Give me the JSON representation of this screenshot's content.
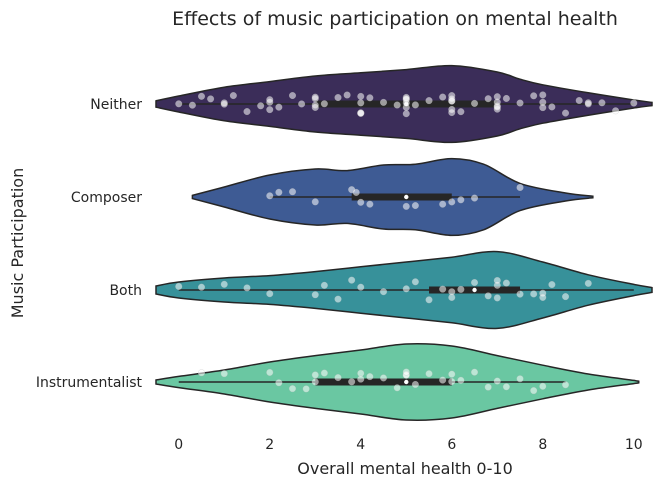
{
  "chart_data": {
    "type": "violin",
    "orientation": "horizontal",
    "title": "Effects of music participation on mental health",
    "xlabel": "Overall mental health 0-10",
    "ylabel": "Music Participation",
    "xlim": [
      -0.5,
      10.4
    ],
    "xticks": [
      "0",
      "2",
      "4",
      "6",
      "8",
      "10"
    ],
    "grid": false,
    "categories": [
      "Neither",
      "Composer",
      "Both",
      "Instrumentalist"
    ],
    "colors": [
      "#3b2d59",
      "#3e5b94",
      "#37919a",
      "#6ac7a2"
    ],
    "series": [
      {
        "name": "Neither",
        "density": [
          [
            -0.5,
            0.08
          ],
          [
            0,
            0.2
          ],
          [
            1,
            0.42
          ],
          [
            2,
            0.56
          ],
          [
            3,
            0.7
          ],
          [
            4,
            0.78
          ],
          [
            5,
            0.86
          ],
          [
            6,
            0.96
          ],
          [
            7,
            0.8
          ],
          [
            7.5,
            0.62
          ],
          [
            8,
            0.48
          ],
          [
            9,
            0.28
          ],
          [
            10,
            0.1
          ],
          [
            10.4,
            0.04
          ]
        ],
        "quartiles": [
          3,
          5,
          7
        ],
        "whiskers": [
          0,
          10
        ],
        "points": [
          0,
          0.3,
          0.5,
          0.7,
          1,
          1,
          1.2,
          1.5,
          1.8,
          2,
          2,
          2,
          2.2,
          2.5,
          2.7,
          3,
          3,
          3,
          3,
          3.2,
          3.5,
          3.7,
          4,
          4,
          4,
          4,
          4,
          4.2,
          4.5,
          4.8,
          5,
          5,
          5,
          5,
          5,
          5,
          5.2,
          5.5,
          5.8,
          6,
          6,
          6,
          6,
          6,
          6,
          6.2,
          6.5,
          6.8,
          7,
          7,
          7,
          7,
          7,
          7.2,
          7.5,
          7.8,
          8,
          8,
          8,
          8.2,
          8.5,
          8.8,
          9,
          9,
          9.3,
          9.6,
          10
        ]
      },
      {
        "name": "Composer",
        "density": [
          [
            0.3,
            0.04
          ],
          [
            1,
            0.25
          ],
          [
            2,
            0.55
          ],
          [
            3,
            0.7
          ],
          [
            3.7,
            0.66
          ],
          [
            4.5,
            0.8
          ],
          [
            5.2,
            0.82
          ],
          [
            6,
            0.96
          ],
          [
            6.7,
            0.82
          ],
          [
            7.5,
            0.34
          ],
          [
            8.5,
            0.1
          ],
          [
            9.1,
            0.02
          ]
        ],
        "quartiles": [
          3.8,
          5,
          6
        ],
        "whiskers": [
          2,
          7.5
        ],
        "points": [
          2,
          2.2,
          2.5,
          3,
          3.8,
          3.9,
          4,
          4.2,
          5,
          5.2,
          5.8,
          6,
          6.2,
          6.5,
          7.5
        ]
      },
      {
        "name": "Both",
        "density": [
          [
            -0.5,
            0.1
          ],
          [
            0,
            0.2
          ],
          [
            1,
            0.3
          ],
          [
            2,
            0.36
          ],
          [
            3,
            0.46
          ],
          [
            4,
            0.58
          ],
          [
            5,
            0.7
          ],
          [
            6,
            0.82
          ],
          [
            7,
            0.96
          ],
          [
            8,
            0.7
          ],
          [
            9,
            0.38
          ],
          [
            10,
            0.14
          ],
          [
            10.4,
            0.06
          ]
        ],
        "quartiles": [
          5.5,
          6.5,
          7.5
        ],
        "whiskers": [
          0,
          10
        ],
        "points": [
          0,
          0.5,
          1,
          1.5,
          2,
          3,
          3.2,
          3.5,
          3.8,
          4,
          4.5,
          5,
          5.2,
          5.5,
          5.8,
          6,
          6,
          6.2,
          6.5,
          6.8,
          7,
          7,
          7,
          7.2,
          7.5,
          7.8,
          8,
          8,
          8.2,
          8.5,
          9
        ]
      },
      {
        "name": "Instrumentalist",
        "density": [
          [
            -0.5,
            0.05
          ],
          [
            0,
            0.14
          ],
          [
            1,
            0.3
          ],
          [
            2,
            0.5
          ],
          [
            3,
            0.66
          ],
          [
            4,
            0.8
          ],
          [
            5,
            0.95
          ],
          [
            6,
            0.9
          ],
          [
            7,
            0.66
          ],
          [
            8,
            0.42
          ],
          [
            9,
            0.2
          ],
          [
            10,
            0.04
          ],
          [
            10.1,
            0.02
          ]
        ],
        "quartiles": [
          3,
          5,
          6
        ],
        "whiskers": [
          0,
          8.5
        ],
        "points": [
          0.5,
          1,
          2,
          2.2,
          2.5,
          2.8,
          3,
          3,
          3.2,
          3.5,
          3.8,
          4,
          4,
          4.2,
          4.5,
          4.8,
          5,
          5,
          5,
          5.2,
          5.5,
          5.8,
          6,
          6,
          6.2,
          6.5,
          6.8,
          7,
          7.2,
          7.5,
          7.8,
          8,
          8.5
        ]
      }
    ]
  }
}
